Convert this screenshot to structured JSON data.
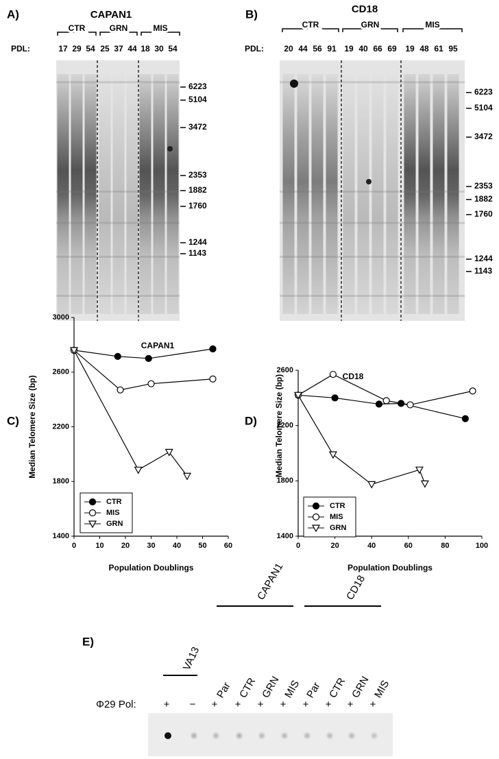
{
  "panel_a": {
    "label": "A)",
    "title": "CAPAN1",
    "groups": [
      "CTR",
      "GRN",
      "MIS"
    ],
    "pdl_label": "PDL:",
    "pdl": [
      17,
      29,
      54,
      25,
      37,
      44,
      18,
      30,
      54
    ],
    "markers": [
      6223,
      5104,
      3472,
      2353,
      1882,
      1760,
      1244,
      1143
    ]
  },
  "panel_b": {
    "label": "B)",
    "title": "CD18",
    "groups": [
      "CTR",
      "GRN",
      "MIS"
    ],
    "pdl_label": "PDL:",
    "pdl": [
      20,
      44,
      56,
      91,
      19,
      40,
      66,
      69,
      19,
      48,
      61,
      95
    ],
    "markers": [
      6223,
      5104,
      3472,
      2353,
      1882,
      1760,
      1244,
      1143
    ]
  },
  "chart_data": [
    {
      "type": "line",
      "panel": "C)",
      "title": "CAPAN1",
      "x_label": "Population Doublings",
      "y_label": "Median Telomere Size (bp)",
      "xlim": [
        0,
        60
      ],
      "xticks": [
        0,
        10,
        20,
        30,
        40,
        50,
        60
      ],
      "ylim": [
        1400,
        3000
      ],
      "yticks": [
        1400,
        1800,
        2200,
        2600,
        3000
      ],
      "legend": "lower left",
      "series": [
        {
          "name": "CTR",
          "color": "#000000",
          "marker": "filled-circle",
          "x": [
            0,
            17,
            29,
            54
          ],
          "values": [
            2760,
            2715,
            2700,
            2770
          ]
        },
        {
          "name": "MIS",
          "color": "#000000",
          "marker": "open-circle",
          "x": [
            0,
            18,
            30,
            54
          ],
          "values": [
            2760,
            2470,
            2515,
            2550
          ]
        },
        {
          "name": "GRN",
          "color": "#000000",
          "marker": "open-triangle-down",
          "x": [
            0,
            25,
            37,
            44
          ],
          "values": [
            2760,
            1885,
            2015,
            1840
          ]
        }
      ]
    },
    {
      "type": "line",
      "panel": "D)",
      "title": "CD18",
      "x_label": "Population Doublings",
      "y_label": "Median Telomere Size (bp)",
      "xlim": [
        0,
        100
      ],
      "xticks": [
        0,
        20,
        40,
        60,
        80,
        100
      ],
      "ylim": [
        1400,
        2600
      ],
      "yticks": [
        1400,
        1800,
        2200,
        2600
      ],
      "legend": "lower left",
      "series": [
        {
          "name": "CTR",
          "color": "#000000",
          "marker": "filled-circle",
          "x": [
            0,
            20,
            44,
            56,
            91
          ],
          "values": [
            2420,
            2400,
            2355,
            2360,
            2250
          ]
        },
        {
          "name": "MIS",
          "color": "#000000",
          "marker": "open-circle",
          "x": [
            0,
            19,
            48,
            61,
            95
          ],
          "values": [
            2420,
            2570,
            2380,
            2350,
            2450
          ]
        },
        {
          "name": "GRN",
          "color": "#000000",
          "marker": "open-triangle-down",
          "x": [
            0,
            19,
            40,
            66,
            69
          ],
          "values": [
            2420,
            1990,
            1775,
            1880,
            1780
          ]
        }
      ]
    }
  ],
  "panel_e": {
    "label": "E)",
    "va13": "VA13",
    "capan1": "CAPAN1",
    "cd18": "CD18",
    "lanes": [
      "Par",
      "CTR",
      "GRN",
      "MIS",
      "Par",
      "CTR",
      "GRN",
      "MIS"
    ],
    "pol_label": "Φ29 Pol:",
    "signs": [
      "+",
      "−",
      "+",
      "+",
      "+",
      "+",
      "+",
      "+",
      "+",
      "+"
    ]
  }
}
